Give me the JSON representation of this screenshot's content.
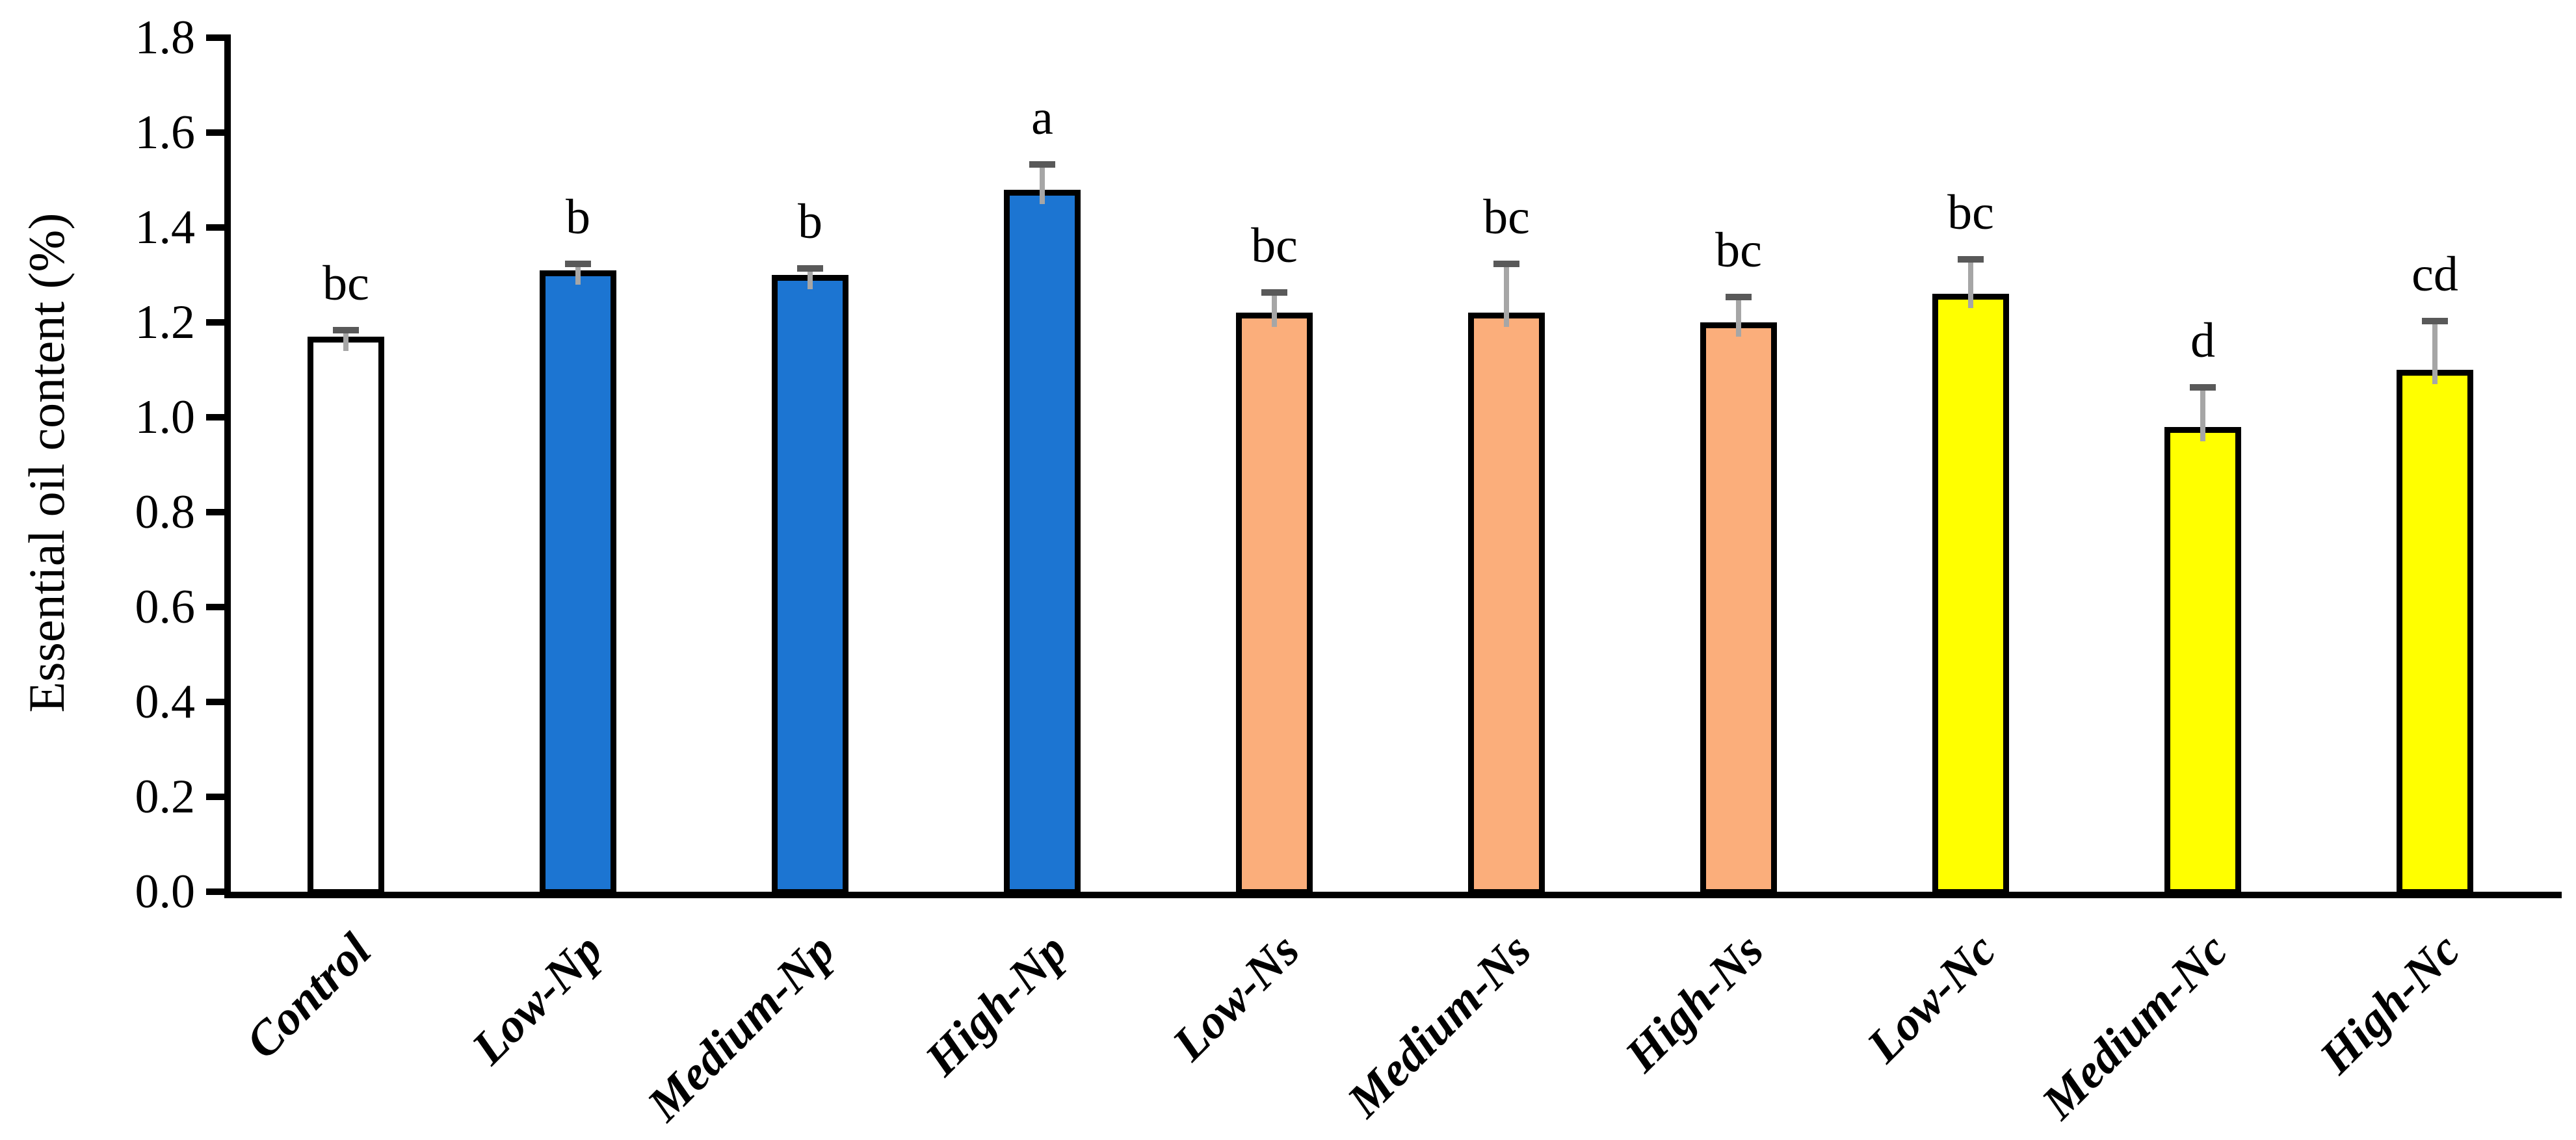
{
  "figure": {
    "background": "#FFFFFF"
  },
  "chart_data": {
    "type": "bar",
    "title": "",
    "xlabel": "",
    "ylabel": "Essential oil content (%)",
    "ylim": [
      0.0,
      1.8
    ],
    "ytick_step": 0.2,
    "yticks": [
      "0.0",
      "0.2",
      "0.4",
      "0.6",
      "0.8",
      "1.0",
      "1.2",
      "1.4",
      "1.6",
      "1.8"
    ],
    "grid": false,
    "legend_position": "none",
    "categories": [
      "Control",
      "Low-Np",
      "Medium-Np",
      "High-Np",
      "Low-Ns",
      "Medium-Ns",
      "High-Ns",
      "Low-Nc",
      "Medium-Nc",
      "High-Nc"
    ],
    "series": [
      {
        "name": "Essential oil content",
        "values": [
          1.17,
          1.31,
          1.3,
          1.48,
          1.22,
          1.22,
          1.2,
          1.26,
          0.98,
          1.1
        ],
        "errors_plus": [
          0.02,
          0.02,
          0.02,
          0.06,
          0.05,
          0.11,
          0.06,
          0.08,
          0.09,
          0.11
        ],
        "sig_letters": [
          "bc",
          "b",
          "b",
          "a",
          "bc",
          "bc",
          "bc",
          "bc",
          "d",
          "cd"
        ],
        "bar_fills": [
          "#FFFFFF",
          "#1C75D2",
          "#1C75D2",
          "#1C75D2",
          "#FBAE7B",
          "#FBAE7B",
          "#FBAE7B",
          "#FFFF00",
          "#FFFF00",
          "#FFFF00"
        ]
      }
    ],
    "colors": {
      "bar_border": "#000000",
      "error_stem": "#A6A6A6",
      "error_cap": "#595959",
      "axis": "#000000",
      "control_fill": "#FFFFFF",
      "np_group_fill": "#1C75D2",
      "ns_group_fill": "#FBAE7B",
      "nc_group_fill": "#FFFF00"
    }
  }
}
